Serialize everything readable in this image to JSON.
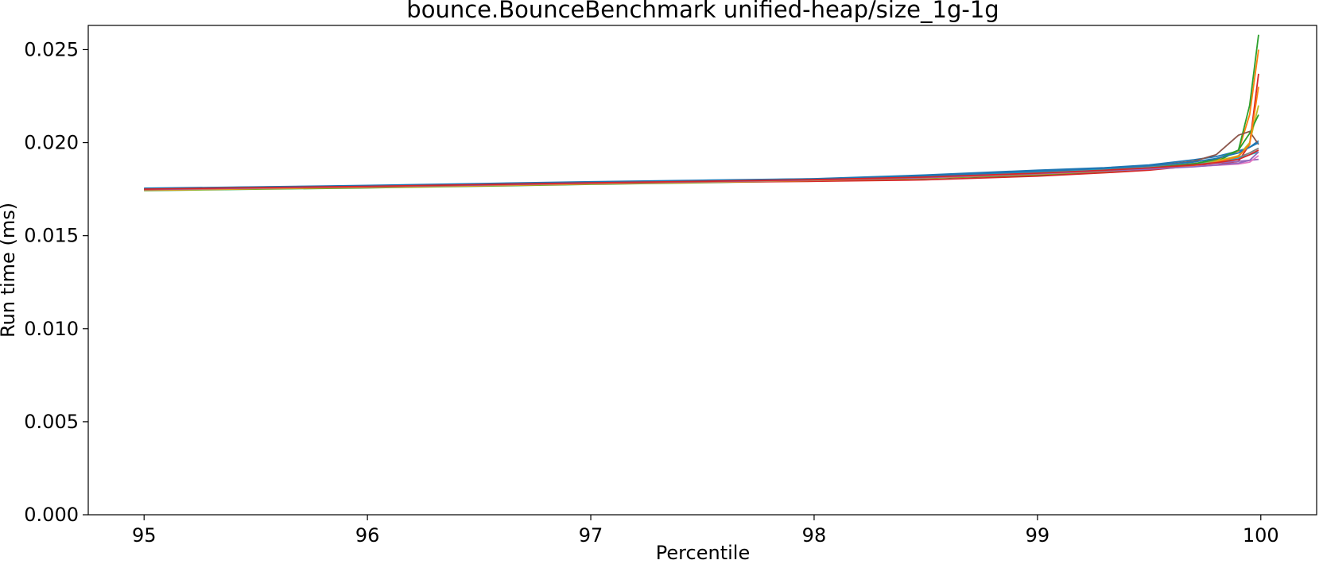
{
  "chart_data": {
    "type": "line",
    "title": "bounce.BounceBenchmark unified-heap/size_1g-1g",
    "xlabel": "Percentile",
    "ylabel": "Run time (ms)",
    "xlim": [
      94.75,
      100.25
    ],
    "ylim": [
      0.0,
      0.0263
    ],
    "xticks": [
      95,
      96,
      97,
      98,
      99,
      100
    ],
    "xtick_labels": [
      "95",
      "96",
      "97",
      "98",
      "99",
      "100"
    ],
    "yticks": [
      0.0,
      0.005,
      0.01,
      0.015,
      0.02,
      0.025
    ],
    "ytick_labels": [
      "0.000",
      "0.005",
      "0.010",
      "0.015",
      "0.020",
      "0.025"
    ],
    "grid": false,
    "legend": "none",
    "x": [
      95.0,
      95.5,
      96.0,
      96.5,
      97.0,
      97.5,
      98.0,
      98.5,
      99.0,
      99.3,
      99.5,
      99.7,
      99.8,
      99.9,
      99.95,
      99.99
    ],
    "series": [
      {
        "color": "#1f77b4",
        "values": [
          0.01755,
          0.01762,
          0.0177,
          0.0178,
          0.0179,
          0.01798,
          0.01806,
          0.01826,
          0.01852,
          0.01865,
          0.0188,
          0.01908,
          0.01925,
          0.01955,
          0.01975,
          0.0201
        ]
      },
      {
        "color": "#ff7f0e",
        "values": [
          0.01748,
          0.01756,
          0.01763,
          0.01772,
          0.01782,
          0.0179,
          0.018,
          0.01815,
          0.01836,
          0.01852,
          0.01866,
          0.01884,
          0.01905,
          0.01955,
          0.0215,
          0.025
        ]
      },
      {
        "color": "#2ca02c",
        "values": [
          0.01742,
          0.0175,
          0.01757,
          0.01766,
          0.01776,
          0.01785,
          0.01795,
          0.01808,
          0.01826,
          0.01842,
          0.01856,
          0.01874,
          0.01895,
          0.0196,
          0.022,
          0.0258
        ]
      },
      {
        "color": "#d62728",
        "values": [
          0.01745,
          0.01752,
          0.0176,
          0.01768,
          0.01778,
          0.01787,
          0.01792,
          0.018,
          0.0182,
          0.01838,
          0.01852,
          0.01875,
          0.0188,
          0.019,
          0.0199,
          0.0237
        ]
      },
      {
        "color": "#9467bd",
        "values": [
          0.01752,
          0.0176,
          0.01767,
          0.01776,
          0.01786,
          0.01795,
          0.01804,
          0.01818,
          0.0184,
          0.01856,
          0.01866,
          0.0188,
          0.0189,
          0.019,
          0.01905,
          0.0191
        ]
      },
      {
        "color": "#8c564b",
        "values": [
          0.0175,
          0.01758,
          0.01765,
          0.01774,
          0.01784,
          0.01792,
          0.01802,
          0.01818,
          0.01842,
          0.0186,
          0.01874,
          0.019,
          0.01935,
          0.0204,
          0.0206,
          0.0199
        ]
      },
      {
        "color": "#e377c2",
        "values": [
          0.01746,
          0.01754,
          0.01761,
          0.0177,
          0.0178,
          0.01789,
          0.01798,
          0.01812,
          0.01832,
          0.01848,
          0.0186,
          0.01872,
          0.01878,
          0.01885,
          0.01895,
          0.0193
        ]
      },
      {
        "color": "#7f7f7f",
        "values": [
          0.01751,
          0.01759,
          0.01766,
          0.01775,
          0.01785,
          0.01793,
          0.01803,
          0.0182,
          0.01844,
          0.01858,
          0.0187,
          0.01888,
          0.019,
          0.0192,
          0.01945,
          0.0197
        ]
      },
      {
        "color": "#bcbd22",
        "values": [
          0.01744,
          0.01752,
          0.01759,
          0.01768,
          0.01778,
          0.01787,
          0.01797,
          0.0181,
          0.0183,
          0.01846,
          0.0186,
          0.0188,
          0.019,
          0.0193,
          0.02,
          0.022
        ]
      },
      {
        "color": "#17becf",
        "values": [
          0.01749,
          0.01757,
          0.01764,
          0.01773,
          0.01783,
          0.01791,
          0.01801,
          0.01816,
          0.01838,
          0.01854,
          0.01866,
          0.01882,
          0.01895,
          0.01915,
          0.01935,
          0.0195
        ]
      },
      {
        "color": "#2ca02c",
        "values": [
          0.01747,
          0.01755,
          0.01762,
          0.01771,
          0.01781,
          0.0179,
          0.018,
          0.01814,
          0.01834,
          0.0185,
          0.01864,
          0.01886,
          0.0191,
          0.0196,
          0.0205,
          0.0215
        ]
      },
      {
        "color": "#1f77b4",
        "values": [
          0.01753,
          0.01761,
          0.01768,
          0.01777,
          0.01787,
          0.01796,
          0.01805,
          0.01822,
          0.01846,
          0.01862,
          0.01876,
          0.01896,
          0.01915,
          0.01945,
          0.01975,
          0.02
        ]
      },
      {
        "color": "#ff7f0e",
        "values": [
          0.01746,
          0.01754,
          0.01761,
          0.0177,
          0.0178,
          0.01788,
          0.01798,
          0.01811,
          0.01831,
          0.01847,
          0.0186,
          0.01878,
          0.01895,
          0.01925,
          0.0199,
          0.023
        ]
      },
      {
        "color": "#9467bd",
        "values": [
          0.01748,
          0.01756,
          0.01763,
          0.01772,
          0.01782,
          0.0179,
          0.01799,
          0.01812,
          0.01833,
          0.01848,
          0.01858,
          0.0187,
          0.0188,
          0.0189,
          0.01905,
          0.0195
        ]
      },
      {
        "color": "#d62728",
        "values": [
          0.0175,
          0.01758,
          0.01765,
          0.01774,
          0.01784,
          0.01792,
          0.01801,
          0.01815,
          0.01836,
          0.01852,
          0.01864,
          0.0188,
          0.01892,
          0.0191,
          0.01935,
          0.0196
        ]
      }
    ]
  }
}
